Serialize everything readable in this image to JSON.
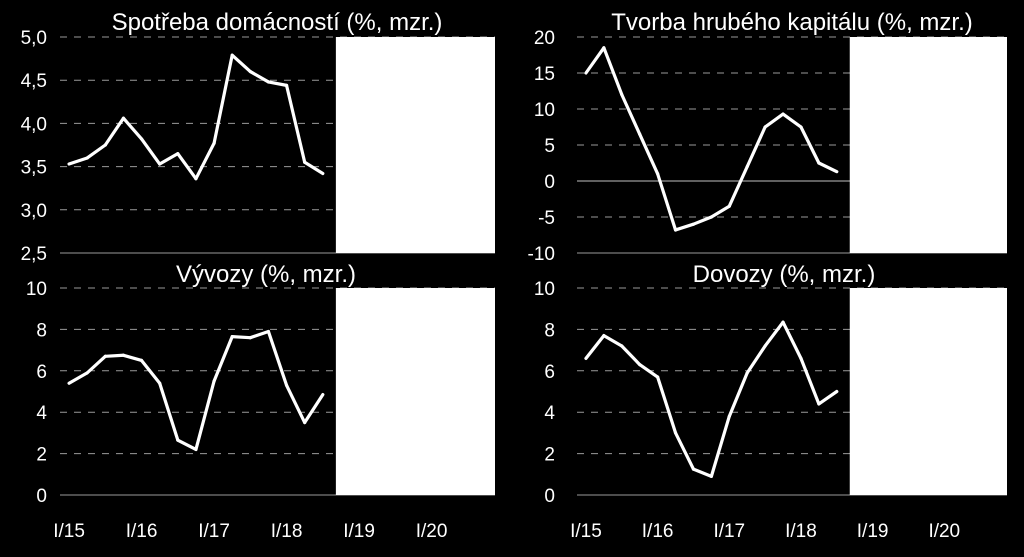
{
  "colors": {
    "background": "#000000",
    "line": "#ffffff",
    "grid": "#9a9a9a",
    "forecast_area": "#ffffff"
  },
  "x_axis_labels": [
    "I/15",
    "I/16",
    "I/17",
    "I/18",
    "I/19",
    "I/20"
  ],
  "chart_data": [
    {
      "type": "line",
      "title": "Spotřeba domácností (%, mzr.)",
      "xlabel": "",
      "ylabel": "",
      "x": [
        "I/15",
        "II/15",
        "III/15",
        "IV/15",
        "I/16",
        "II/16",
        "III/16",
        "IV/16",
        "I/17",
        "II/17",
        "III/17",
        "IV/17",
        "I/18",
        "II/18",
        "III/18",
        "IV/18"
      ],
      "values": [
        3.53,
        3.6,
        3.75,
        4.06,
        3.82,
        3.53,
        3.65,
        3.36,
        3.77,
        4.79,
        4.6,
        4.48,
        4.44,
        3.55,
        3.42,
        null
      ],
      "ylim": [
        2.5,
        5.0
      ],
      "yticks": [
        "2,5",
        "3,0",
        "3,5",
        "4,0",
        "4,5",
        "5,0"
      ],
      "ytick_values": [
        2.5,
        3.0,
        3.5,
        4.0,
        4.5,
        5.0
      ],
      "xticks": [
        "I/15",
        "I/16",
        "I/17",
        "I/18",
        "I/19",
        "I/20"
      ],
      "grid": true,
      "forecast_shaded_from": "IV/18"
    },
    {
      "type": "line",
      "title": "Tvorba hrubého kapitálu (%, mzr.)",
      "xlabel": "",
      "ylabel": "",
      "x": [
        "I/15",
        "II/15",
        "III/15",
        "IV/15",
        "I/16",
        "II/16",
        "III/16",
        "IV/16",
        "I/17",
        "II/17",
        "III/17",
        "IV/17",
        "I/18",
        "II/18",
        "III/18",
        "IV/18"
      ],
      "values": [
        15.0,
        18.5,
        12.0,
        6.5,
        1.0,
        -6.8,
        -6.0,
        -5.0,
        -3.5,
        2.0,
        7.5,
        9.3,
        7.5,
        2.5,
        1.3,
        null
      ],
      "ylim": [
        -10,
        20
      ],
      "yticks": [
        "-10",
        "-5",
        "0",
        "5",
        "10",
        "15",
        "20"
      ],
      "ytick_values": [
        -10,
        -5,
        0,
        5,
        10,
        15,
        20
      ],
      "xticks": [
        "I/15",
        "I/16",
        "I/17",
        "I/18",
        "I/19",
        "I/20"
      ],
      "grid": true,
      "forecast_shaded_from": "IV/18"
    },
    {
      "type": "line",
      "title": "Vývozy (%, mzr.)",
      "xlabel": "",
      "ylabel": "",
      "x": [
        "I/15",
        "II/15",
        "III/15",
        "IV/15",
        "I/16",
        "II/16",
        "III/16",
        "IV/16",
        "I/17",
        "II/17",
        "III/17",
        "IV/17",
        "I/18",
        "II/18",
        "III/18",
        "IV/18"
      ],
      "values": [
        5.4,
        5.9,
        6.7,
        6.75,
        6.5,
        5.4,
        2.65,
        2.2,
        5.5,
        7.65,
        7.6,
        7.9,
        5.3,
        3.5,
        4.85,
        null
      ],
      "ylim": [
        0,
        10
      ],
      "yticks": [
        "0",
        "2",
        "4",
        "6",
        "8",
        "10"
      ],
      "ytick_values": [
        0,
        2,
        4,
        6,
        8,
        10
      ],
      "xticks": [
        "I/15",
        "I/16",
        "I/17",
        "I/18",
        "I/19",
        "I/20"
      ],
      "grid": true,
      "forecast_shaded_from": "IV/18"
    },
    {
      "type": "line",
      "title": "Dovozy (%, mzr.)",
      "xlabel": "",
      "ylabel": "",
      "x": [
        "I/15",
        "II/15",
        "III/15",
        "IV/15",
        "I/16",
        "II/16",
        "III/16",
        "IV/16",
        "I/17",
        "II/17",
        "III/17",
        "IV/17",
        "I/18",
        "II/18",
        "III/18",
        "IV/18"
      ],
      "values": [
        6.6,
        7.7,
        7.2,
        6.3,
        5.7,
        3.0,
        1.25,
        0.9,
        3.8,
        5.9,
        7.2,
        8.35,
        6.6,
        4.4,
        5.0,
        null
      ],
      "ylim": [
        0,
        10
      ],
      "yticks": [
        "0",
        "2",
        "4",
        "6",
        "8",
        "10"
      ],
      "ytick_values": [
        0,
        2,
        4,
        6,
        8,
        10
      ],
      "xticks": [
        "I/15",
        "I/16",
        "I/17",
        "I/18",
        "I/19",
        "I/20"
      ],
      "grid": true,
      "forecast_shaded_from": "IV/18"
    }
  ]
}
